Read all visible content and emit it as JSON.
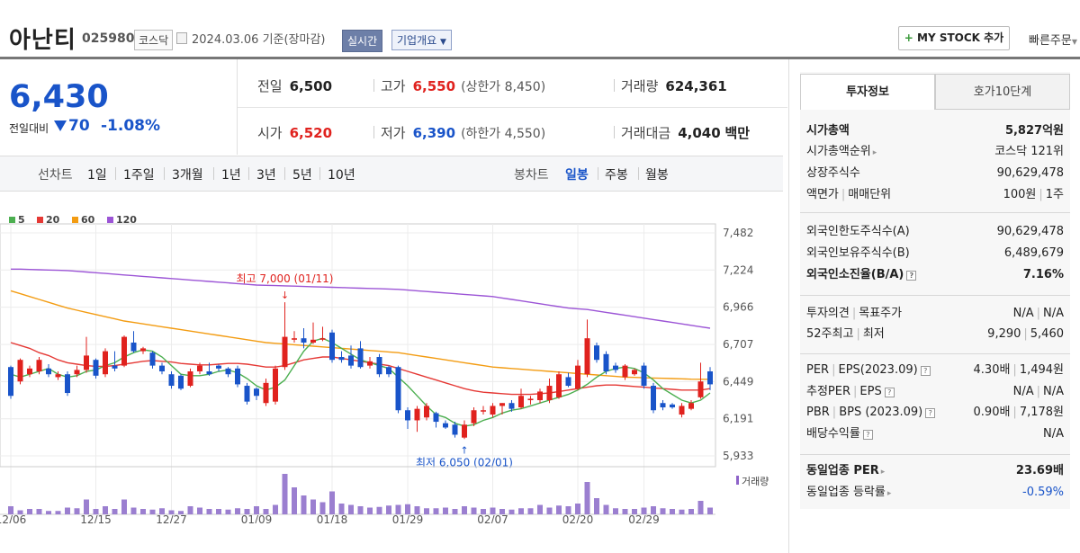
{
  "header": {
    "name": "아난티",
    "code": "025980",
    "market": "코스닥",
    "base_date": "2024.03.06 기준(장마감)",
    "live_button": "실시간",
    "corp_button": "기업개요",
    "mystock_button": "MY STOCK 추가",
    "quick_order": "빠른주문"
  },
  "price": {
    "current": "6,430",
    "change_label": "전일대비",
    "change_value": "70",
    "change_pct": "-1.08%"
  },
  "stats": {
    "prev_label": "전일",
    "prev": "6,500",
    "high_label": "고가",
    "high": "6,550",
    "upper_limit": "(상한가 8,450)",
    "volume_label": "거래량",
    "volume": "624,361",
    "open_label": "시가",
    "open": "6,520",
    "low_label": "저가",
    "low": "6,390",
    "lower_limit": "(하한가 4,550)",
    "amount_label": "거래대금",
    "amount": "4,040",
    "amount_unit": "백만"
  },
  "period_bar": {
    "line_label": "선차트",
    "line_items": [
      "1일",
      "1주일",
      "3개월",
      "1년",
      "3년",
      "5년",
      "10년"
    ],
    "candle_label": "봉차트",
    "candle_items": [
      "일봉",
      "주봉",
      "월봉"
    ],
    "candle_active": "일봉"
  },
  "chart_data": {
    "type": "candlestick",
    "legend": [
      {
        "name": "5",
        "color": "#4caf50"
      },
      {
        "name": "20",
        "color": "#e53935"
      },
      {
        "name": "60",
        "color": "#f39c12"
      },
      {
        "name": "120",
        "color": "#9c55d6"
      }
    ],
    "y_ticks": [
      "7,482",
      "7,224",
      "6,966",
      "6,707",
      "6,449",
      "6,191",
      "5,933"
    ],
    "ylim": [
      5933,
      7482
    ],
    "x_ticks": [
      "12/06",
      "12/15",
      "12/27",
      "01/09",
      "01/18",
      "01/29",
      "02/07",
      "02/20",
      "02/29"
    ],
    "high_annotation": "최고 7,000 (01/11)",
    "low_annotation": "최저 6,050 (02/01)",
    "volume_label": "거래량",
    "candles": [
      {
        "o": 6550,
        "c": 6350,
        "h": 6560,
        "l": 6330
      },
      {
        "o": 6450,
        "c": 6600,
        "h": 6610,
        "l": 6430
      },
      {
        "o": 6500,
        "c": 6540,
        "h": 6560,
        "l": 6480
      },
      {
        "o": 6520,
        "c": 6600,
        "h": 6620,
        "l": 6500
      },
      {
        "o": 6540,
        "c": 6500,
        "h": 6570,
        "l": 6480
      },
      {
        "o": 6480,
        "c": 6500,
        "h": 6520,
        "l": 6460
      },
      {
        "o": 6500,
        "c": 6370,
        "h": 6520,
        "l": 6350
      },
      {
        "o": 6500,
        "c": 6530,
        "h": 6560,
        "l": 6480
      },
      {
        "o": 6530,
        "c": 6630,
        "h": 6760,
        "l": 6510
      },
      {
        "o": 6600,
        "c": 6490,
        "h": 6610,
        "l": 6470
      },
      {
        "o": 6500,
        "c": 6660,
        "h": 6680,
        "l": 6480
      },
      {
        "o": 6560,
        "c": 6540,
        "h": 6660,
        "l": 6520
      },
      {
        "o": 6560,
        "c": 6760,
        "h": 6770,
        "l": 6550
      },
      {
        "o": 6720,
        "c": 6660,
        "h": 6800,
        "l": 6650
      },
      {
        "o": 6660,
        "c": 6680,
        "h": 6690,
        "l": 6640
      },
      {
        "o": 6650,
        "c": 6560,
        "h": 6660,
        "l": 6540
      },
      {
        "o": 6560,
        "c": 6520,
        "h": 6580,
        "l": 6500
      },
      {
        "o": 6500,
        "c": 6420,
        "h": 6520,
        "l": 6400
      },
      {
        "o": 6490,
        "c": 6400,
        "h": 6500,
        "l": 6390
      },
      {
        "o": 6420,
        "c": 6520,
        "h": 6540,
        "l": 6410
      },
      {
        "o": 6520,
        "c": 6560,
        "h": 6580,
        "l": 6500
      },
      {
        "o": 6520,
        "c": 6500,
        "h": 6580,
        "l": 6490
      },
      {
        "o": 6560,
        "c": 6540,
        "h": 6570,
        "l": 6520
      },
      {
        "o": 6540,
        "c": 6500,
        "h": 6550,
        "l": 6480
      },
      {
        "o": 6540,
        "c": 6430,
        "h": 6560,
        "l": 6410
      },
      {
        "o": 6420,
        "c": 6310,
        "h": 6440,
        "l": 6290
      },
      {
        "o": 6400,
        "c": 6350,
        "h": 6410,
        "l": 6320
      },
      {
        "o": 6300,
        "c": 6440,
        "h": 6470,
        "l": 6280
      },
      {
        "o": 6310,
        "c": 6540,
        "h": 6560,
        "l": 6290
      },
      {
        "o": 6550,
        "c": 6760,
        "h": 7000,
        "l": 6530
      },
      {
        "o": 6740,
        "c": 6750,
        "h": 6800,
        "l": 6720
      },
      {
        "o": 6750,
        "c": 6720,
        "h": 6820,
        "l": 6680
      },
      {
        "o": 6720,
        "c": 6740,
        "h": 6860,
        "l": 6710
      },
      {
        "o": 6740,
        "c": 6750,
        "h": 6830,
        "l": 6730
      },
      {
        "o": 6790,
        "c": 6600,
        "h": 6810,
        "l": 6580
      },
      {
        "o": 6620,
        "c": 6600,
        "h": 6660,
        "l": 6580
      },
      {
        "o": 6630,
        "c": 6560,
        "h": 6700,
        "l": 6540
      },
      {
        "o": 6680,
        "c": 6550,
        "h": 6730,
        "l": 6540
      },
      {
        "o": 6560,
        "c": 6590,
        "h": 6620,
        "l": 6540
      },
      {
        "o": 6620,
        "c": 6500,
        "h": 6640,
        "l": 6480
      },
      {
        "o": 6550,
        "c": 6500,
        "h": 6560,
        "l": 6480
      },
      {
        "o": 6550,
        "c": 6250,
        "h": 6560,
        "l": 6230
      },
      {
        "o": 6250,
        "c": 6180,
        "h": 6270,
        "l": 6120
      },
      {
        "o": 6180,
        "c": 6260,
        "h": 6280,
        "l": 6100
      },
      {
        "o": 6200,
        "c": 6280,
        "h": 6300,
        "l": 6180
      },
      {
        "o": 6230,
        "c": 6170,
        "h": 6240,
        "l": 6130
      },
      {
        "o": 6160,
        "c": 6130,
        "h": 6180,
        "l": 6120
      },
      {
        "o": 6150,
        "c": 6080,
        "h": 6170,
        "l": 6060
      },
      {
        "o": 6060,
        "c": 6150,
        "h": 6180,
        "l": 6050
      },
      {
        "o": 6160,
        "c": 6250,
        "h": 6270,
        "l": 6140
      },
      {
        "o": 6250,
        "c": 6250,
        "h": 6280,
        "l": 6220
      },
      {
        "o": 6220,
        "c": 6280,
        "h": 6300,
        "l": 6200
      },
      {
        "o": 6280,
        "c": 6300,
        "h": 6300,
        "l": 6220
      },
      {
        "o": 6300,
        "c": 6260,
        "h": 6320,
        "l": 6240
      },
      {
        "o": 6270,
        "c": 6350,
        "h": 6400,
        "l": 6260
      },
      {
        "o": 6320,
        "c": 6330,
        "h": 6350,
        "l": 6290
      },
      {
        "o": 6320,
        "c": 6380,
        "h": 6400,
        "l": 6300
      },
      {
        "o": 6320,
        "c": 6420,
        "h": 6470,
        "l": 6300
      },
      {
        "o": 6340,
        "c": 6500,
        "h": 6520,
        "l": 6330
      },
      {
        "o": 6480,
        "c": 6420,
        "h": 6510,
        "l": 6410
      },
      {
        "o": 6400,
        "c": 6560,
        "h": 6600,
        "l": 6390
      },
      {
        "o": 6500,
        "c": 6750,
        "h": 6880,
        "l": 6480
      },
      {
        "o": 6700,
        "c": 6600,
        "h": 6720,
        "l": 6580
      },
      {
        "o": 6640,
        "c": 6520,
        "h": 6660,
        "l": 6500
      },
      {
        "o": 6560,
        "c": 6530,
        "h": 6580,
        "l": 6510
      },
      {
        "o": 6480,
        "c": 6560,
        "h": 6570,
        "l": 6460
      },
      {
        "o": 6500,
        "c": 6530,
        "h": 6540,
        "l": 6490
      },
      {
        "o": 6560,
        "c": 6420,
        "h": 6580,
        "l": 6400
      },
      {
        "o": 6420,
        "c": 6250,
        "h": 6440,
        "l": 6230
      },
      {
        "o": 6300,
        "c": 6270,
        "h": 6320,
        "l": 6250
      },
      {
        "o": 6290,
        "c": 6270,
        "h": 6300,
        "l": 6260
      },
      {
        "o": 6220,
        "c": 6280,
        "h": 6300,
        "l": 6200
      },
      {
        "o": 6260,
        "c": 6300,
        "h": 6320,
        "l": 6250
      },
      {
        "o": 6340,
        "c": 6450,
        "h": 6580,
        "l": 6330
      },
      {
        "o": 6520,
        "c": 6430,
        "h": 6550,
        "l": 6390
      }
    ],
    "ma5": [
      6500,
      6480,
      6500,
      6520,
      6540,
      6500,
      6480,
      6490,
      6520,
      6530,
      6560,
      6580,
      6620,
      6650,
      6670,
      6660,
      6620,
      6560,
      6500,
      6490,
      6490,
      6500,
      6520,
      6530,
      6510,
      6470,
      6420,
      6390,
      6410,
      6460,
      6560,
      6660,
      6730,
      6750,
      6720,
      6680,
      6640,
      6600,
      6580,
      6560,
      6540,
      6480,
      6420,
      6350,
      6280,
      6220,
      6200,
      6160,
      6140,
      6150,
      6180,
      6200,
      6230,
      6250,
      6260,
      6280,
      6300,
      6320,
      6340,
      6360,
      6390,
      6430,
      6480,
      6520,
      6540,
      6550,
      6540,
      6510,
      6460,
      6400,
      6360,
      6320,
      6300,
      6320,
      6370
    ],
    "ma20": [
      6720,
      6700,
      6680,
      6650,
      6630,
      6600,
      6580,
      6570,
      6560,
      6555,
      6555,
      6560,
      6570,
      6580,
      6590,
      6595,
      6590,
      6585,
      6575,
      6570,
      6565,
      6565,
      6570,
      6575,
      6575,
      6570,
      6560,
      6550,
      6550,
      6560,
      6580,
      6600,
      6610,
      6620,
      6620,
      6610,
      6600,
      6590,
      6580,
      6570,
      6560,
      6540,
      6520,
      6500,
      6480,
      6460,
      6440,
      6420,
      6400,
      6385,
      6375,
      6370,
      6365,
      6360,
      6360,
      6360,
      6365,
      6370,
      6380,
      6390,
      6400,
      6410,
      6420,
      6425,
      6425,
      6420,
      6415,
      6410,
      6405,
      6400,
      6395,
      6390,
      6390,
      6390,
      6400
    ],
    "ma60": [
      7080,
      7060,
      7040,
      7020,
      7000,
      6980,
      6960,
      6945,
      6930,
      6915,
      6900,
      6885,
      6870,
      6860,
      6850,
      6840,
      6830,
      6820,
      6810,
      6800,
      6790,
      6780,
      6770,
      6760,
      6750,
      6740,
      6730,
      6720,
      6715,
      6710,
      6705,
      6700,
      6695,
      6690,
      6685,
      6680,
      6675,
      6670,
      6665,
      6660,
      6655,
      6650,
      6640,
      6630,
      6620,
      6610,
      6600,
      6590,
      6580,
      6570,
      6560,
      6550,
      6545,
      6540,
      6535,
      6530,
      6525,
      6520,
      6515,
      6510,
      6505,
      6500,
      6495,
      6490,
      6485,
      6480,
      6478,
      6476,
      6474,
      6472,
      6470,
      6468,
      6466,
      6465,
      6465
    ],
    "ma120": [
      7230,
      7230,
      7228,
      7226,
      7224,
      7222,
      7220,
      7215,
      7210,
      7205,
      7200,
      7195,
      7190,
      7185,
      7180,
      7175,
      7170,
      7165,
      7160,
      7155,
      7150,
      7145,
      7140,
      7135,
      7130,
      7125,
      7120,
      7118,
      7116,
      7114,
      7112,
      7110,
      7108,
      7106,
      7104,
      7102,
      7100,
      7098,
      7096,
      7094,
      7092,
      7090,
      7085,
      7080,
      7075,
      7070,
      7065,
      7060,
      7055,
      7050,
      7045,
      7040,
      7030,
      7020,
      7010,
      7000,
      6990,
      6980,
      6970,
      6960,
      6955,
      6950,
      6940,
      6930,
      6920,
      6910,
      6900,
      6890,
      6880,
      6870,
      6860,
      6850,
      6840,
      6830,
      6820
    ],
    "volume": [
      12,
      6,
      8,
      8,
      5,
      5,
      10,
      9,
      22,
      8,
      12,
      8,
      22,
      10,
      8,
      7,
      9,
      6,
      5,
      12,
      10,
      8,
      8,
      7,
      9,
      8,
      12,
      8,
      14,
      60,
      40,
      28,
      22,
      18,
      34,
      16,
      14,
      12,
      10,
      11,
      13,
      14,
      15,
      12,
      9,
      9,
      10,
      8,
      12,
      10,
      8,
      10,
      8,
      7,
      9,
      9,
      14,
      10,
      13,
      12,
      16,
      48,
      24,
      14,
      9,
      8,
      8,
      10,
      12,
      9,
      8,
      7,
      8,
      20,
      10
    ]
  },
  "info": {
    "tab_invest": "투자정보",
    "tab_hoga": "호가10단계",
    "rows1": [
      {
        "k": "시가총액",
        "v": "5,827억원"
      },
      {
        "k": "시가총액순위",
        "v": "코스닥 121위"
      },
      {
        "k": "상장주식수",
        "v": "90,629,478"
      },
      {
        "k": "액면가",
        "k2": "매매단위",
        "v": "100원",
        "v2": "1주"
      }
    ],
    "rows2": [
      {
        "k": "외국인한도주식수(A)",
        "v": "90,629,478"
      },
      {
        "k": "외국인보유주식수(B)",
        "v": "6,489,679"
      },
      {
        "k": "외국인소진율(B/A)",
        "v": "7.16%"
      }
    ],
    "rows3": [
      {
        "k": "투자의견",
        "k2": "목표주가",
        "v": "N/A",
        "v2": "N/A"
      },
      {
        "k": "52주최고",
        "k2": "최저",
        "v": "9,290",
        "v2": "5,460"
      }
    ],
    "rows4": [
      {
        "k": "PER",
        "k2": "EPS(2023.09)",
        "v": "4.30배",
        "v2": "1,494원"
      },
      {
        "k": "추정PER",
        "k2": "EPS",
        "v": "N/A",
        "v2": "N/A"
      },
      {
        "k": "PBR",
        "k2": "BPS (2023.09)",
        "v": "0.90배",
        "v2": "7,178원"
      },
      {
        "k": "배당수익률",
        "v": "N/A"
      }
    ],
    "rows5": [
      {
        "k": "동일업종 PER",
        "v": "23.69배"
      },
      {
        "k": "동일업종 등락률",
        "v": "-0.59%"
      }
    ],
    "colors": {
      "up": "#e0221e",
      "down": "#1954c9",
      "accent": "#1954c9"
    }
  }
}
